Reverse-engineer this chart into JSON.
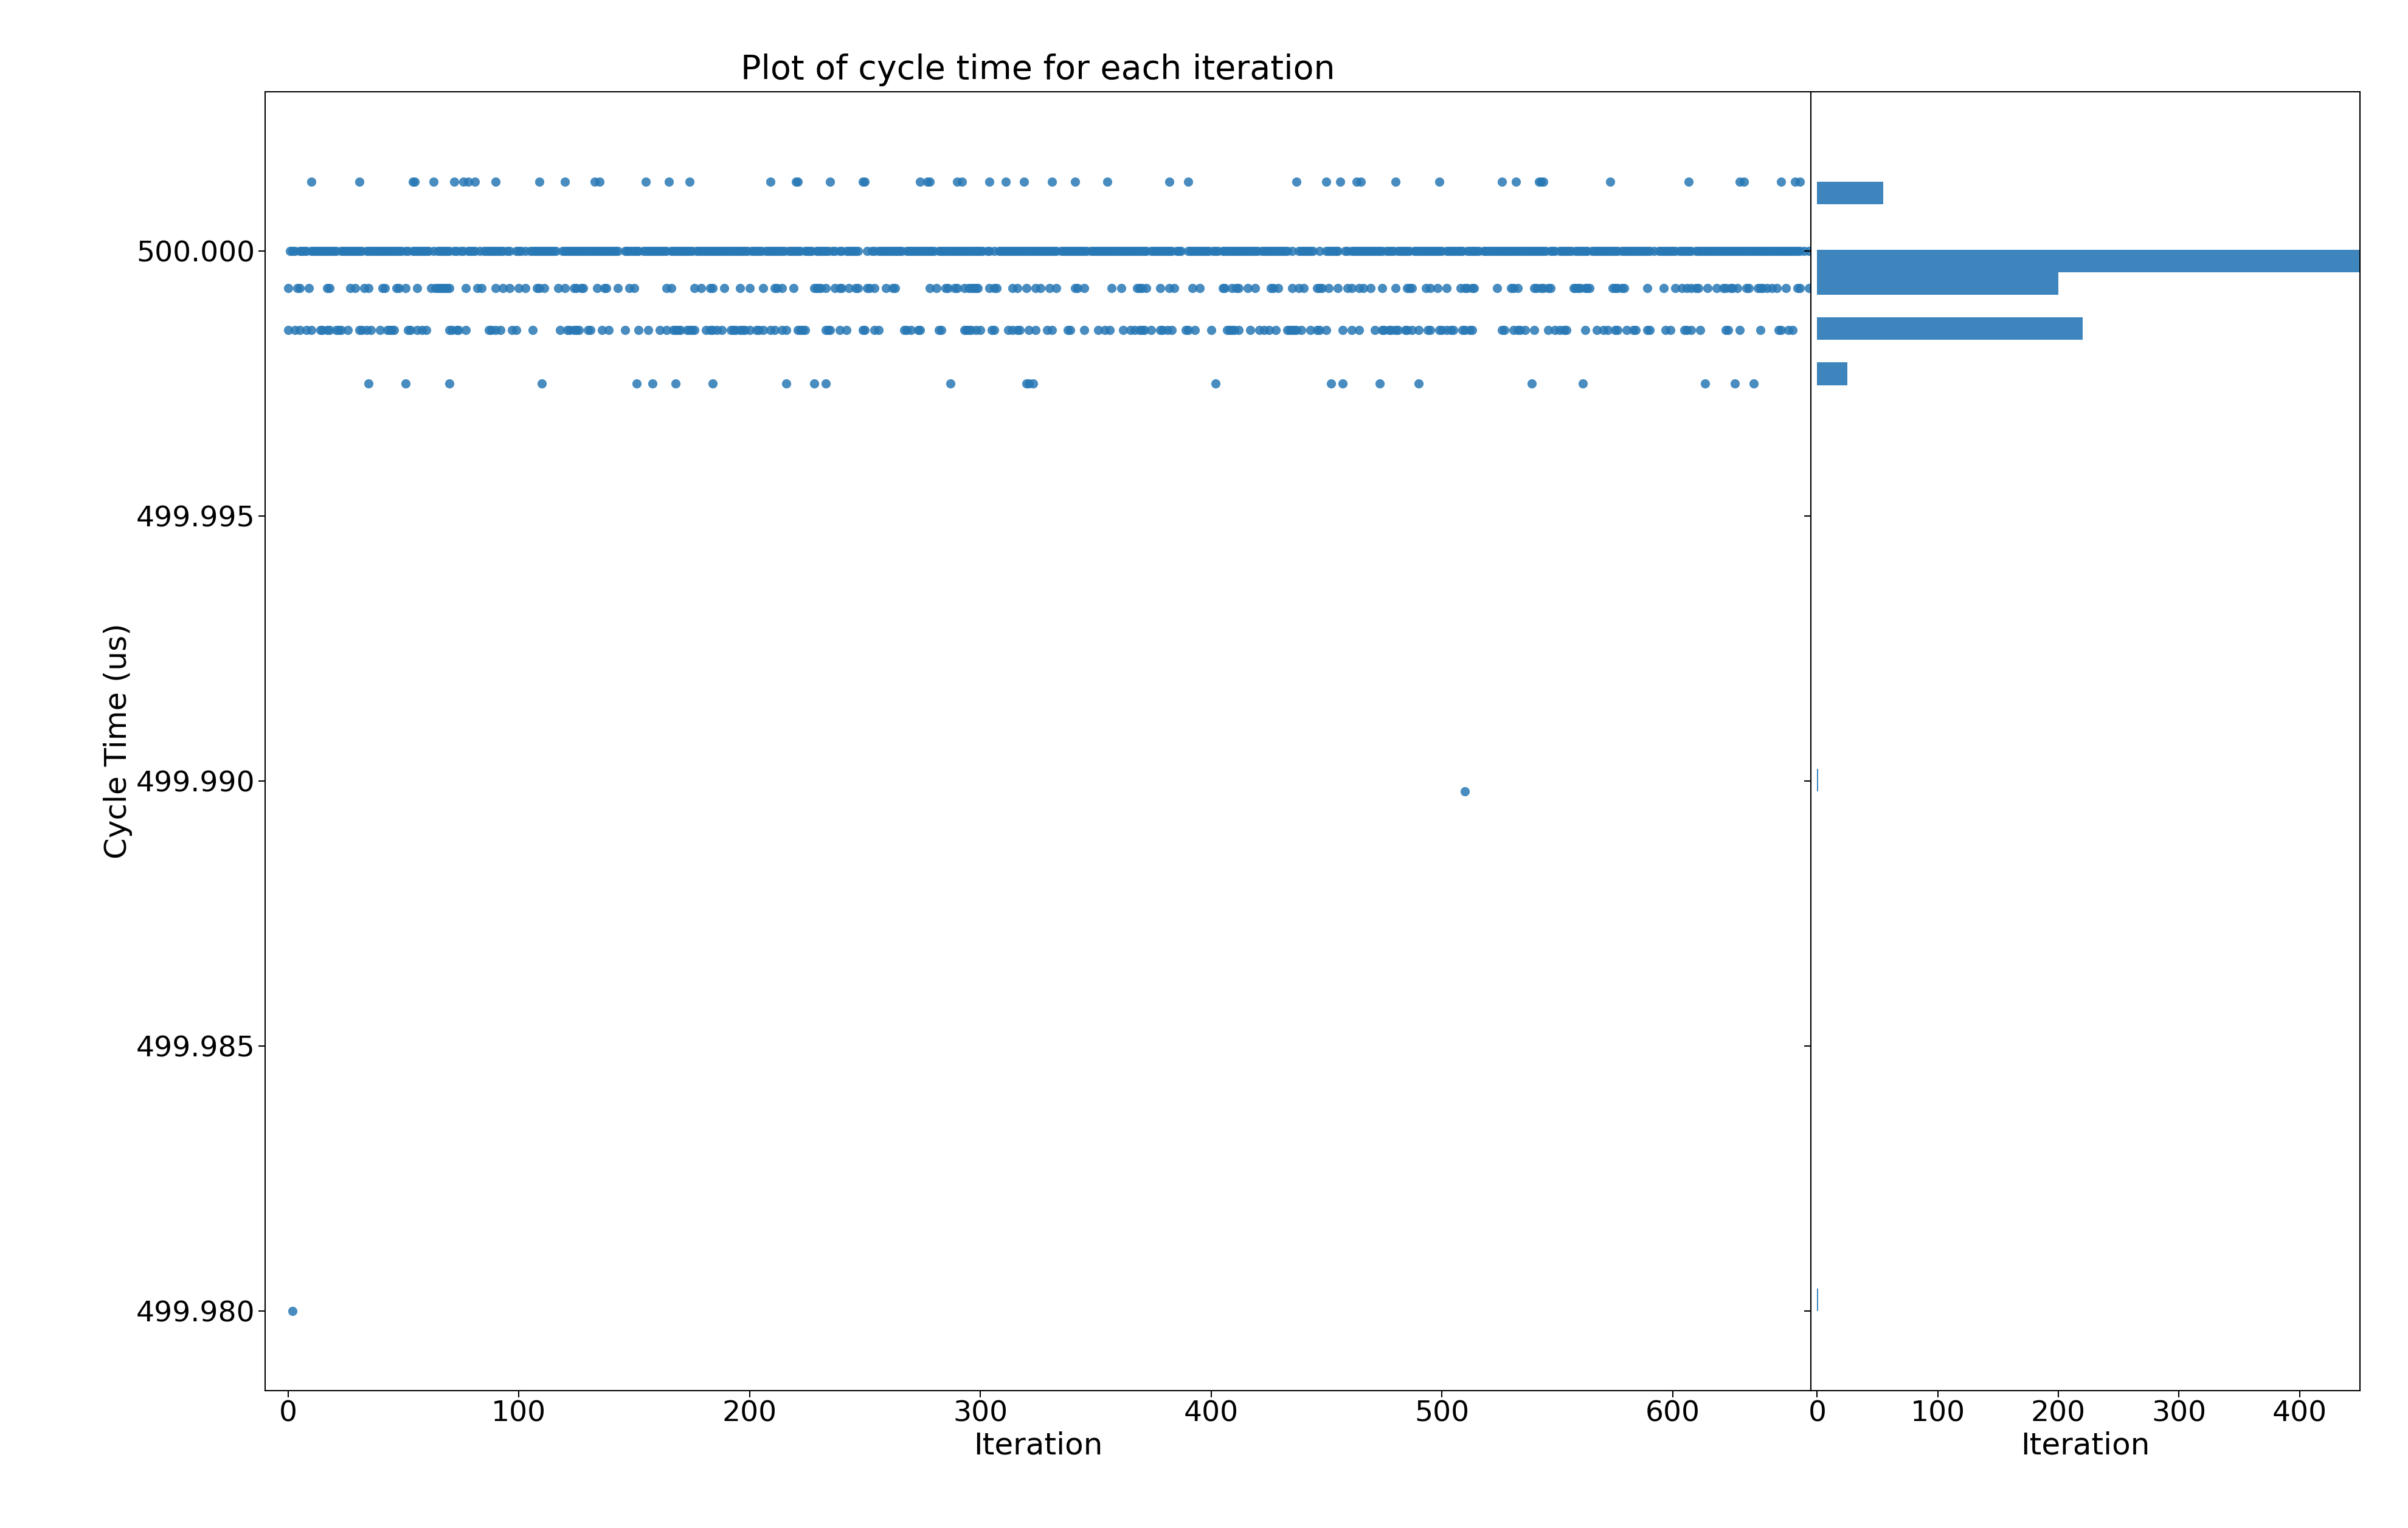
{
  "title": "Plot of cycle time for each iteration",
  "xlabel": "Iteration",
  "ylabel": "Cycle Time (us)",
  "scatter_color": "#2878b5",
  "hist_color": "#2878b5",
  "marker_size": 120,
  "ylim": [
    499.9785,
    500.003
  ],
  "xlim_scatter": [
    -10,
    660
  ],
  "xlim_hist": [
    -5,
    450
  ],
  "yticks": [
    499.98,
    499.985,
    499.99,
    499.995,
    500.0
  ],
  "xticks_scatter": [
    0,
    100,
    200,
    300,
    400,
    500,
    600
  ],
  "xticks_hist": [
    0,
    100,
    200,
    300,
    400
  ],
  "seed": 42,
  "hist_bins": 50,
  "title_fontsize": 40,
  "label_fontsize": 36,
  "tick_fontsize": 34,
  "background_color": "#ffffff",
  "y_band1": 500.0013,
  "y_band2": 500.0,
  "y_band3": 499.9993,
  "y_band4": 499.9985,
  "y_band5": 499.9975,
  "y_outlier1": 499.9898,
  "y_outlier2": 499.98,
  "n_band1": 55,
  "n_band2": 580,
  "n_band3": 200,
  "n_band4": 220,
  "n_band5": 25,
  "n_iter": 660
}
